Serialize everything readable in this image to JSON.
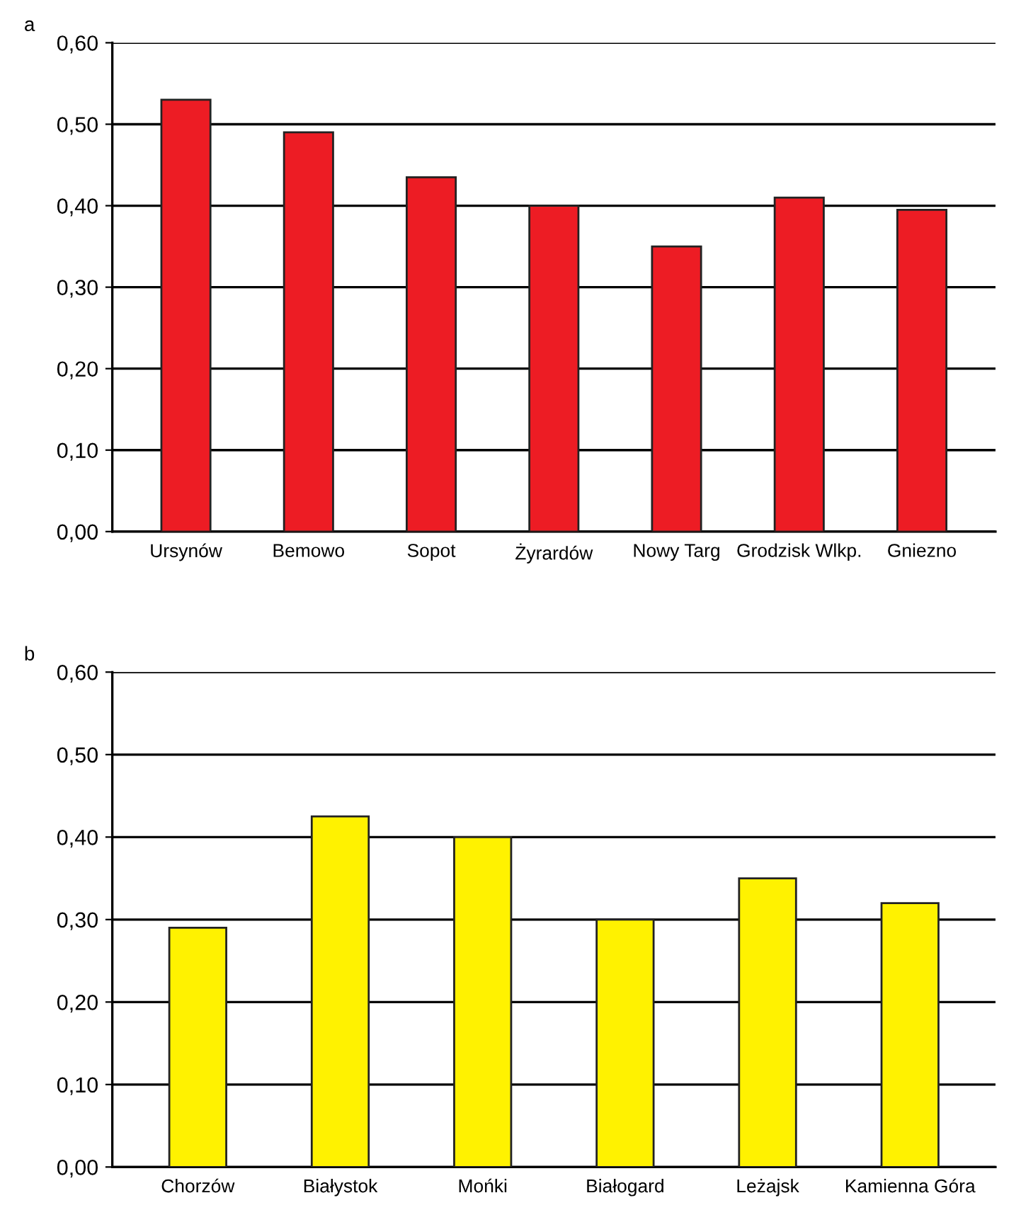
{
  "chart_data": [
    {
      "type": "bar",
      "title": "a",
      "categories": [
        "Ursynów",
        "Bemowo",
        "Sopot",
        "Żyrardów",
        "Nowy Targ",
        "Grodzisk Wlkp.",
        "Gniezno"
      ],
      "values": [
        0.53,
        0.49,
        0.435,
        0.4,
        0.35,
        0.41,
        0.395
      ],
      "color": "#ed1c24",
      "ylim": [
        0,
        0.6
      ],
      "yticks": [
        {
          "value": 0,
          "label": "0,00"
        },
        {
          "value": 0.1,
          "label": "0,10"
        },
        {
          "value": 0.2,
          "label": "0,20"
        },
        {
          "value": 0.3,
          "label": "0,30"
        },
        {
          "value": 0.4,
          "label": "0,40"
        },
        {
          "value": 0.5,
          "label": "0,50"
        },
        {
          "value": 0.6,
          "label": "0,60"
        }
      ],
      "grid": "y"
    },
    {
      "type": "bar",
      "title": "b",
      "categories": [
        "Chorzów",
        "Białystok",
        "Mońki",
        "Białogard",
        "Leżajsk",
        "Kamienna Góra"
      ],
      "values": [
        0.29,
        0.425,
        0.4,
        0.3,
        0.35,
        0.32
      ],
      "color": "#fff200",
      "ylim": [
        0,
        0.6
      ],
      "yticks": [
        {
          "value": 0,
          "label": "0,00"
        },
        {
          "value": 0.1,
          "label": "0,10"
        },
        {
          "value": 0.2,
          "label": "0,20"
        },
        {
          "value": 0.3,
          "label": "0,30"
        },
        {
          "value": 0.4,
          "label": "0,40"
        },
        {
          "value": 0.5,
          "label": "0,50"
        },
        {
          "value": 0.6,
          "label": "0,60"
        }
      ],
      "grid": "y"
    }
  ]
}
